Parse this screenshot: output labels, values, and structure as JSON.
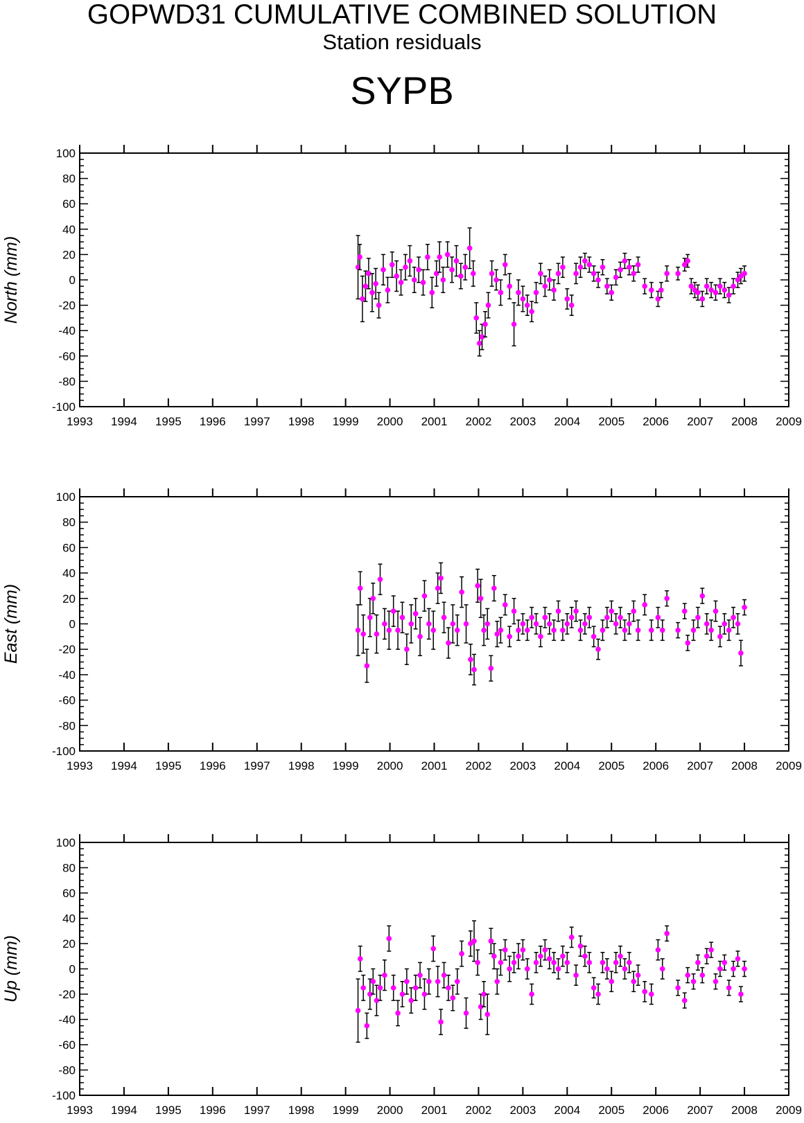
{
  "header": {
    "title": "GOPWD31 CUMULATIVE COMBINED SOLUTION",
    "subtitle": "Station residuals",
    "station": "SYPB"
  },
  "colors": {
    "point": "#ff00ff",
    "error_bar": "#000000",
    "frame": "#000000"
  },
  "chart_data": [
    {
      "type": "scatter",
      "ylabel": "North (mm)",
      "xlim": [
        1993,
        2009
      ],
      "ylim": [
        -100,
        100
      ],
      "x_ticks": [
        "1993",
        "1994",
        "1995",
        "1996",
        "1997",
        "1998",
        "1999",
        "2000",
        "2001",
        "2002",
        "2003",
        "2004",
        "2005",
        "2006",
        "2007",
        "2008",
        "2009"
      ],
      "y_ticks": [
        "100",
        "80",
        "60",
        "40",
        "20",
        "0",
        "-20",
        "-40",
        "-60",
        "-80",
        "-100"
      ],
      "series": [
        {
          "x": [
            1999.28,
            1999.32,
            1999.38,
            1999.45,
            1999.52,
            1999.6,
            1999.68,
            1999.75,
            1999.85,
            1999.95,
            2000.05,
            2000.15,
            2000.25,
            2000.35,
            2000.45,
            2000.55,
            2000.65,
            2000.75,
            2000.85,
            2000.95,
            2001.05,
            2001.12,
            2001.2,
            2001.3,
            2001.4,
            2001.5,
            2001.6,
            2001.7,
            2001.8,
            2001.88,
            2001.95,
            2002.02,
            2002.08,
            2002.15,
            2002.22,
            2002.3,
            2002.4,
            2002.5,
            2002.6,
            2002.7,
            2002.8,
            2002.9,
            2003.0,
            2003.1,
            2003.2,
            2003.3,
            2003.4,
            2003.5,
            2003.6,
            2003.7,
            2003.8,
            2003.9,
            2004.0,
            2004.1,
            2004.2,
            2004.3,
            2004.4,
            2004.5,
            2004.6,
            2004.7,
            2004.8,
            2004.9,
            2005.0,
            2005.1,
            2005.2,
            2005.3,
            2005.4,
            2005.5,
            2005.6,
            2005.75,
            2005.9,
            2006.05,
            2006.12,
            2006.25,
            2006.5,
            2006.65,
            2006.72,
            2006.8,
            2006.88,
            2006.95,
            2007.05,
            2007.15,
            2007.25,
            2007.35,
            2007.45,
            2007.55,
            2007.65,
            2007.75,
            2007.85,
            2007.92,
            2008.0
          ],
          "y": [
            10,
            18,
            -15,
            -5,
            5,
            -10,
            -3,
            -20,
            8,
            -8,
            12,
            3,
            -2,
            10,
            15,
            0,
            8,
            -2,
            18,
            -10,
            5,
            18,
            0,
            20,
            8,
            15,
            3,
            10,
            25,
            5,
            -30,
            -50,
            -45,
            -35,
            -20,
            5,
            0,
            -10,
            12,
            -5,
            -35,
            -10,
            -15,
            -20,
            -25,
            -10,
            5,
            -5,
            0,
            -8,
            5,
            10,
            -15,
            -20,
            5,
            10,
            15,
            12,
            5,
            0,
            10,
            -5,
            -10,
            2,
            8,
            15,
            10,
            5,
            12,
            -5,
            -8,
            -15,
            -8,
            5,
            5,
            12,
            15,
            -5,
            -8,
            -10,
            -15,
            -5,
            -8,
            -10,
            -5,
            -8,
            -12,
            -5,
            0,
            3,
            5
          ],
          "err": [
            25,
            10,
            18,
            12,
            12,
            15,
            12,
            10,
            12,
            10,
            10,
            12,
            10,
            10,
            12,
            10,
            10,
            10,
            10,
            12,
            10,
            12,
            10,
            10,
            10,
            12,
            10,
            10,
            16,
            10,
            12,
            10,
            10,
            10,
            10,
            10,
            8,
            10,
            8,
            10,
            17,
            10,
            10,
            8,
            8,
            8,
            8,
            8,
            8,
            8,
            8,
            8,
            8,
            8,
            8,
            8,
            6,
            6,
            6,
            6,
            6,
            6,
            6,
            6,
            6,
            6,
            6,
            6,
            6,
            6,
            6,
            6,
            6,
            6,
            5,
            5,
            5,
            6,
            6,
            6,
            6,
            6,
            6,
            6,
            6,
            6,
            6,
            6,
            6,
            6,
            6
          ]
        }
      ]
    },
    {
      "type": "scatter",
      "ylabel": "East (mm)",
      "xlim": [
        1993,
        2009
      ],
      "ylim": [
        -100,
        100
      ],
      "x_ticks": [
        "1993",
        "1994",
        "1995",
        "1996",
        "1997",
        "1998",
        "1999",
        "2000",
        "2001",
        "2002",
        "2003",
        "2004",
        "2005",
        "2006",
        "2007",
        "2008",
        "2009"
      ],
      "y_ticks": [
        "100",
        "80",
        "60",
        "40",
        "20",
        "0",
        "-20",
        "-40",
        "-60",
        "-80",
        "-100"
      ],
      "series": [
        {
          "x": [
            1999.28,
            1999.33,
            1999.4,
            1999.48,
            1999.55,
            1999.62,
            1999.7,
            1999.78,
            1999.88,
            1999.98,
            2000.08,
            2000.18,
            2000.28,
            2000.38,
            2000.48,
            2000.58,
            2000.68,
            2000.78,
            2000.88,
            2000.98,
            2001.08,
            2001.15,
            2001.22,
            2001.32,
            2001.42,
            2001.52,
            2001.62,
            2001.72,
            2001.82,
            2001.9,
            2001.98,
            2002.05,
            2002.12,
            2002.2,
            2002.28,
            2002.35,
            2002.42,
            2002.5,
            2002.6,
            2002.7,
            2002.8,
            2002.9,
            2003.0,
            2003.1,
            2003.2,
            2003.3,
            2003.4,
            2003.5,
            2003.6,
            2003.7,
            2003.8,
            2003.9,
            2004.0,
            2004.1,
            2004.2,
            2004.3,
            2004.4,
            2004.5,
            2004.6,
            2004.7,
            2004.8,
            2004.9,
            2005.0,
            2005.1,
            2005.2,
            2005.3,
            2005.4,
            2005.5,
            2005.6,
            2005.75,
            2005.9,
            2006.05,
            2006.15,
            2006.25,
            2006.5,
            2006.65,
            2006.72,
            2006.85,
            2006.95,
            2007.05,
            2007.15,
            2007.25,
            2007.35,
            2007.45,
            2007.55,
            2007.65,
            2007.75,
            2007.85,
            2007.92,
            2008.0
          ],
          "y": [
            -5,
            28,
            -8,
            -33,
            5,
            20,
            -8,
            35,
            0,
            -5,
            10,
            -5,
            5,
            -20,
            0,
            8,
            -10,
            22,
            0,
            -5,
            28,
            36,
            5,
            -15,
            0,
            -5,
            25,
            0,
            -28,
            -36,
            30,
            20,
            -5,
            0,
            -35,
            28,
            -8,
            -5,
            15,
            -10,
            10,
            -5,
            0,
            -5,
            5,
            0,
            -10,
            5,
            0,
            -5,
            10,
            -5,
            0,
            5,
            10,
            -5,
            0,
            5,
            -10,
            -20,
            -5,
            5,
            10,
            0,
            5,
            -5,
            0,
            10,
            -5,
            15,
            -5,
            5,
            -5,
            20,
            -5,
            10,
            -15,
            -5,
            5,
            22,
            0,
            -5,
            10,
            -10,
            0,
            -5,
            5,
            0,
            -23,
            13
          ],
          "err": [
            20,
            13,
            15,
            13,
            15,
            12,
            15,
            12,
            12,
            15,
            12,
            15,
            12,
            12,
            15,
            12,
            15,
            12,
            12,
            15,
            12,
            12,
            12,
            12,
            15,
            12,
            12,
            15,
            12,
            12,
            13,
            15,
            12,
            12,
            10,
            10,
            10,
            10,
            8,
            8,
            10,
            8,
            8,
            8,
            8,
            8,
            8,
            8,
            8,
            8,
            8,
            8,
            8,
            8,
            8,
            8,
            8,
            8,
            8,
            8,
            8,
            8,
            8,
            8,
            8,
            8,
            8,
            8,
            8,
            8,
            8,
            8,
            8,
            6,
            6,
            6,
            6,
            8,
            8,
            6,
            8,
            8,
            8,
            8,
            8,
            8,
            8,
            8,
            10,
            6
          ]
        }
      ]
    },
    {
      "type": "scatter",
      "ylabel": "Up (mm)",
      "xlim": [
        1993,
        2009
      ],
      "ylim": [
        -100,
        100
      ],
      "x_ticks": [
        "1993",
        "1994",
        "1995",
        "1996",
        "1997",
        "1998",
        "1999",
        "2000",
        "2001",
        "2002",
        "2003",
        "2004",
        "2005",
        "2006",
        "2007",
        "2008",
        "2009"
      ],
      "y_ticks": [
        "100",
        "80",
        "60",
        "40",
        "20",
        "0",
        "-20",
        "-40",
        "-60",
        "-80",
        "-100"
      ],
      "series": [
        {
          "x": [
            1999.28,
            1999.33,
            1999.4,
            1999.48,
            1999.55,
            1999.62,
            1999.7,
            1999.78,
            1999.88,
            1999.98,
            2000.08,
            2000.18,
            2000.28,
            2000.38,
            2000.48,
            2000.58,
            2000.68,
            2000.78,
            2000.88,
            2000.98,
            2001.08,
            2001.15,
            2001.22,
            2001.32,
            2001.42,
            2001.52,
            2001.62,
            2001.72,
            2001.82,
            2001.9,
            2001.98,
            2002.05,
            2002.12,
            2002.2,
            2002.28,
            2002.35,
            2002.42,
            2002.5,
            2002.6,
            2002.7,
            2002.8,
            2002.9,
            2003.0,
            2003.1,
            2003.2,
            2003.3,
            2003.4,
            2003.5,
            2003.6,
            2003.7,
            2003.8,
            2003.9,
            2004.0,
            2004.1,
            2004.2,
            2004.3,
            2004.4,
            2004.5,
            2004.6,
            2004.7,
            2004.8,
            2004.9,
            2005.0,
            2005.1,
            2005.2,
            2005.3,
            2005.4,
            2005.5,
            2005.6,
            2005.75,
            2005.9,
            2006.05,
            2006.15,
            2006.25,
            2006.5,
            2006.65,
            2006.72,
            2006.85,
            2006.95,
            2007.05,
            2007.15,
            2007.25,
            2007.35,
            2007.45,
            2007.55,
            2007.65,
            2007.75,
            2007.85,
            2007.92,
            2008.0
          ],
          "y": [
            -33,
            8,
            -15,
            -45,
            -20,
            -10,
            -25,
            -15,
            -5,
            24,
            -15,
            -35,
            -20,
            -10,
            -25,
            -15,
            -5,
            -20,
            -10,
            16,
            -10,
            -42,
            -5,
            -15,
            -23,
            -10,
            12,
            -35,
            20,
            22,
            5,
            -30,
            -20,
            -36,
            22,
            10,
            -10,
            5,
            15,
            0,
            5,
            10,
            15,
            0,
            -20,
            5,
            10,
            15,
            8,
            5,
            0,
            10,
            5,
            25,
            -5,
            18,
            10,
            5,
            -15,
            -20,
            5,
            0,
            -10,
            5,
            10,
            0,
            5,
            -10,
            -5,
            -18,
            -20,
            15,
            0,
            28,
            -15,
            -25,
            -5,
            -10,
            5,
            -5,
            10,
            15,
            -10,
            0,
            5,
            -15,
            0,
            8,
            -20,
            0
          ],
          "err": [
            25,
            10,
            10,
            10,
            12,
            10,
            12,
            10,
            12,
            10,
            10,
            10,
            10,
            10,
            10,
            10,
            10,
            12,
            10,
            10,
            12,
            10,
            10,
            10,
            10,
            10,
            10,
            12,
            10,
            16,
            10,
            10,
            10,
            16,
            10,
            10,
            10,
            10,
            8,
            10,
            8,
            10,
            8,
            8,
            8,
            8,
            8,
            8,
            8,
            8,
            8,
            8,
            8,
            8,
            8,
            8,
            8,
            8,
            8,
            8,
            8,
            8,
            8,
            8,
            8,
            8,
            8,
            8,
            8,
            8,
            8,
            8,
            8,
            6,
            6,
            6,
            6,
            6,
            6,
            6,
            6,
            6,
            6,
            6,
            6,
            6,
            6,
            6,
            6,
            6
          ]
        }
      ]
    }
  ]
}
